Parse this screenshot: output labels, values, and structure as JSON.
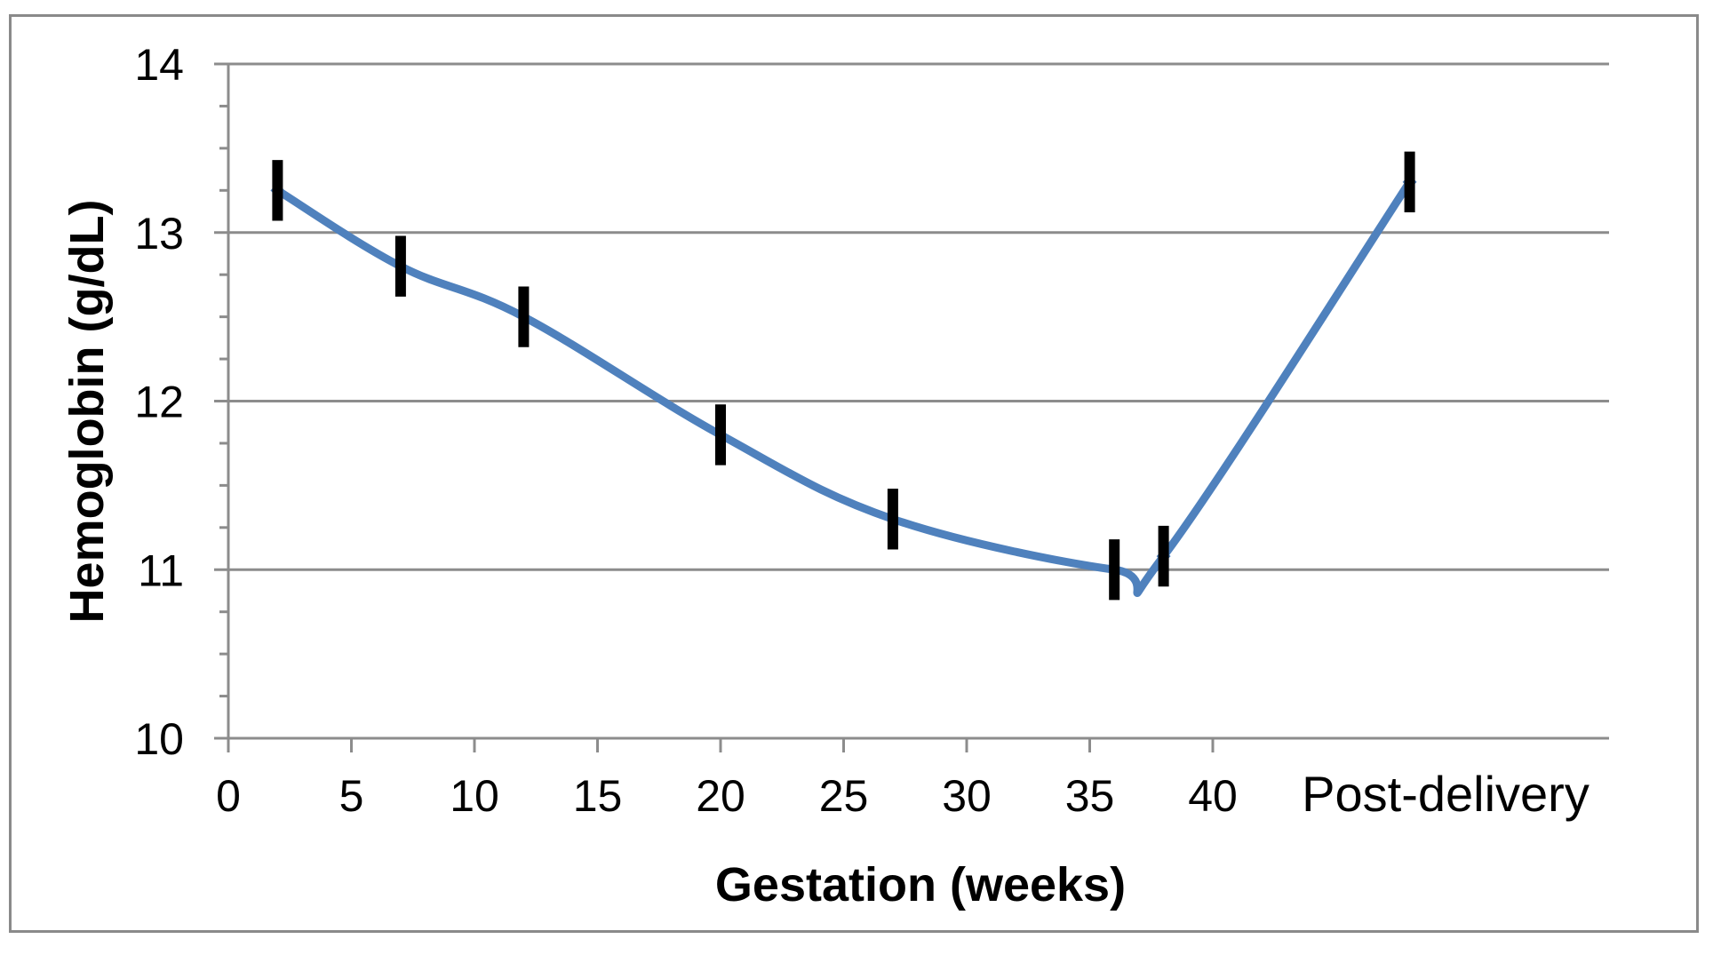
{
  "chart_data": {
    "type": "line",
    "title": "",
    "xlabel": "Gestation (weeks)",
    "ylabel": "Hemoglobin (g/dL)",
    "xlim": [
      0,
      56
    ],
    "ylim": [
      10,
      14
    ],
    "x_ticks": [
      0,
      5,
      10,
      15,
      20,
      25,
      30,
      35,
      40
    ],
    "x_tick_labels": [
      "0",
      "5",
      "10",
      "15",
      "20",
      "25",
      "30",
      "35",
      "40"
    ],
    "x_extra_label": "Post-delivery",
    "y_ticks": [
      10,
      11,
      12,
      13,
      14
    ],
    "y_tick_labels": [
      "10",
      "11",
      "12",
      "13",
      "14"
    ],
    "y_minor_step": 0.25,
    "grid": true,
    "legend": "none",
    "series": [
      {
        "x": [
          2,
          7,
          12,
          20,
          27,
          36,
          38,
          "Post-delivery"
        ],
        "x_plot": [
          2,
          7,
          12,
          20,
          27,
          36,
          38,
          48
        ],
        "values": [
          13.25,
          12.8,
          12.5,
          11.8,
          11.3,
          11.0,
          11.08,
          13.3
        ],
        "error_bar": 0.18,
        "color": "#4f81bd",
        "marker_color": "#000000"
      }
    ]
  }
}
